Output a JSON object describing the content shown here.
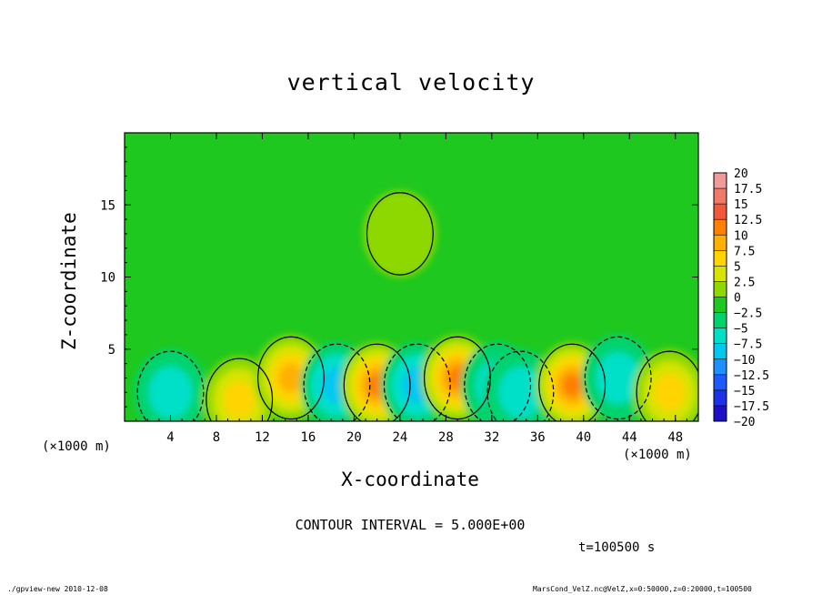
{
  "chart_data": {
    "type": "heatmap",
    "title": "vertical velocity",
    "xlabel": "X-coordinate",
    "ylabel": "Z-coordinate",
    "x_unit_left": "(×1000 m)",
    "x_unit_right": "(×1000 m)",
    "xlim": [
      0,
      50
    ],
    "ylim": [
      0,
      20
    ],
    "x_ticks": [
      4,
      8,
      12,
      16,
      20,
      24,
      28,
      32,
      36,
      40,
      44,
      48
    ],
    "y_ticks": [
      5,
      10,
      15
    ],
    "colorbar": {
      "levels": [
        20,
        17.5,
        15,
        12.5,
        10,
        7.5,
        5,
        2.5,
        0,
        -2.5,
        -5,
        -7.5,
        -10,
        -12.5,
        -15,
        -17.5,
        -20
      ],
      "labels": [
        "20",
        "17.5",
        "15",
        "12.5",
        "10",
        "7.5",
        "5",
        "2.5",
        "0",
        "−2.5",
        "−5",
        "−7.5",
        "−10",
        "−12.5",
        "−15",
        "−17.5",
        "−20"
      ],
      "colors": [
        "#f29a9a",
        "#ef7a6a",
        "#f05a3a",
        "#ff7f00",
        "#ffb000",
        "#ffd400",
        "#d6e400",
        "#8ed800",
        "#1ec81e",
        "#00d36e",
        "#00e0c8",
        "#00c8f0",
        "#1e90ff",
        "#1e5aff",
        "#1e32e6",
        "#1e10c8",
        "#5a1ea0"
      ]
    },
    "cells": [
      {
        "x": 4,
        "z": 2,
        "value": -5
      },
      {
        "x": 10,
        "z": 1.5,
        "value": 7
      },
      {
        "x": 14.5,
        "z": 3,
        "value": 10
      },
      {
        "x": 18.5,
        "z": 2.5,
        "value": -7
      },
      {
        "x": 22,
        "z": 2.5,
        "value": 13
      },
      {
        "x": 25.5,
        "z": 2.5,
        "value": -8
      },
      {
        "x": 29,
        "z": 3,
        "value": 12
      },
      {
        "x": 32.5,
        "z": 2.5,
        "value": -6
      },
      {
        "x": 34.5,
        "z": 2,
        "value": -5
      },
      {
        "x": 39,
        "z": 2.5,
        "value": 12
      },
      {
        "x": 43,
        "z": 3,
        "value": -4
      },
      {
        "x": 47.5,
        "z": 2,
        "value": 8
      },
      {
        "x": 24,
        "z": 13,
        "value": 3
      }
    ]
  },
  "contour_interval": "CONTOUR INTERVAL = 5.000E+00",
  "time": "t=100500 s",
  "footer_left": "./gpview-new  2010-12-08",
  "footer_right": "MarsCond_VelZ.nc@VelZ,x=0:50000,z=0:20000,t=100500"
}
